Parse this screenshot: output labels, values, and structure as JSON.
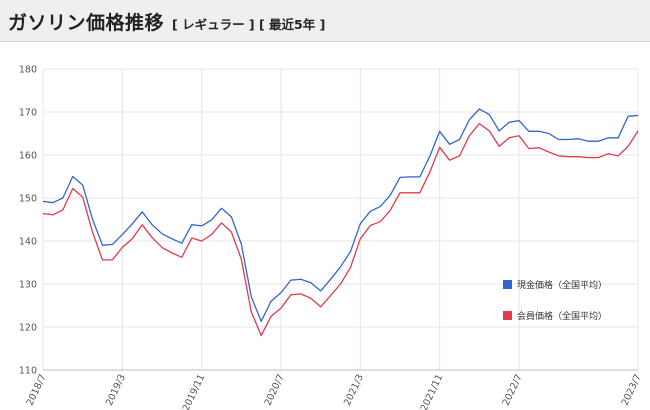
{
  "header": {
    "title": "ガソリン価格推移",
    "subtitle": "[ レギュラー ] [ 最近5年 ]"
  },
  "chart_data": {
    "type": "line",
    "title": "ガソリン価格推移",
    "subtitle": "[ レギュラー ] [ 最近5年 ]",
    "xlabel": "",
    "ylabel": "",
    "ylim": [
      110,
      180
    ],
    "yticks": [
      110,
      120,
      130,
      140,
      150,
      160,
      170,
      180
    ],
    "xtick_labels": [
      "2018/7",
      "2019/3",
      "2019/11",
      "2020/7",
      "2021/3",
      "2021/11",
      "2022/7",
      "2023/7"
    ],
    "grid": true,
    "legend_position": "bottom-right",
    "x": [
      "2018/7",
      "2018/8",
      "2018/9",
      "2018/10",
      "2018/11",
      "2018/12",
      "2019/1",
      "2019/2",
      "2019/3",
      "2019/4",
      "2019/5",
      "2019/6",
      "2019/7",
      "2019/8",
      "2019/9",
      "2019/10",
      "2019/11",
      "2019/12",
      "2020/1",
      "2020/2",
      "2020/3",
      "2020/4",
      "2020/5",
      "2020/6",
      "2020/7",
      "2020/8",
      "2020/9",
      "2020/10",
      "2020/11",
      "2020/12",
      "2021/1",
      "2021/2",
      "2021/3",
      "2021/4",
      "2021/5",
      "2021/6",
      "2021/7",
      "2021/8",
      "2021/9",
      "2021/10",
      "2021/11",
      "2021/12",
      "2022/1",
      "2022/2",
      "2022/3",
      "2022/4",
      "2022/5",
      "2022/6",
      "2022/7",
      "2022/8",
      "2022/9",
      "2022/10",
      "2022/11",
      "2022/12",
      "2023/1",
      "2023/2",
      "2023/3",
      "2023/4",
      "2023/5",
      "2023/6",
      "2023/7"
    ],
    "series": [
      {
        "name": "現金価格（全国平均）",
        "color": "#3366cc",
        "values": [
          149.2,
          148.9,
          150.0,
          155.0,
          153.0,
          145.0,
          139.0,
          139.2,
          141.5,
          144.0,
          146.8,
          143.8,
          141.7,
          140.5,
          139.5,
          143.8,
          143.5,
          144.9,
          147.6,
          145.6,
          139.3,
          127.0,
          121.3,
          126.0,
          128.0,
          130.9,
          131.1,
          130.3,
          128.4,
          131.1,
          134.0,
          137.5,
          144.0,
          146.9,
          148.0,
          150.6,
          154.8,
          154.9,
          154.9,
          159.7,
          165.5,
          162.5,
          163.6,
          168.2,
          170.7,
          169.4,
          165.6,
          167.6,
          168.0,
          165.5,
          165.5,
          165.0,
          163.6,
          163.6,
          163.8,
          163.2,
          163.2,
          164.0,
          164.0,
          169.0,
          169.2
        ]
      },
      {
        "name": "会員価格（全国平均）",
        "color": "#e03c4d",
        "values": [
          146.4,
          146.1,
          147.2,
          152.2,
          150.2,
          142.0,
          135.6,
          135.6,
          138.5,
          140.5,
          143.8,
          140.8,
          138.5,
          137.2,
          136.2,
          140.7,
          140.0,
          141.5,
          144.2,
          142.1,
          135.8,
          123.5,
          118.0,
          122.5,
          124.4,
          127.5,
          127.7,
          126.7,
          124.7,
          127.3,
          130.0,
          133.8,
          140.5,
          143.6,
          144.5,
          147.1,
          151.2,
          151.2,
          151.2,
          156.0,
          161.8,
          158.8,
          159.8,
          164.5,
          167.3,
          165.6,
          162.0,
          164.0,
          164.5,
          161.5,
          161.7,
          160.7,
          159.8,
          159.6,
          159.6,
          159.4,
          159.4,
          160.3,
          159.8,
          162.0,
          165.6
        ]
      }
    ]
  }
}
